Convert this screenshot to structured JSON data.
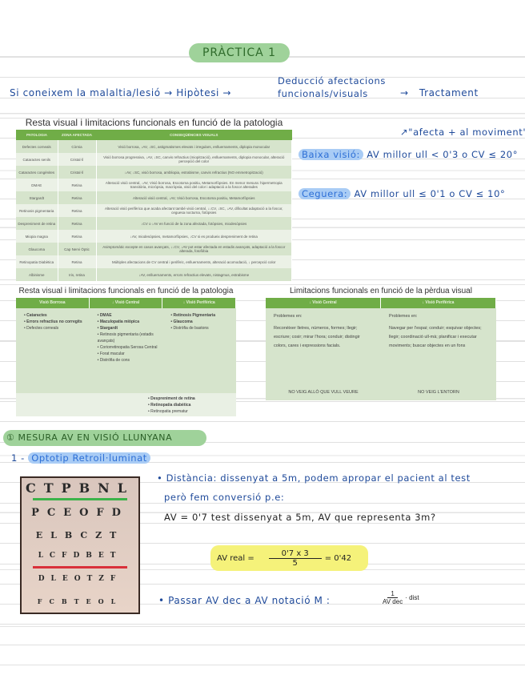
{
  "title": "PRÀCTICA 1",
  "flow": {
    "step1": "Si coneixem la malaltia/lesió",
    "arrow": "→",
    "step2": "Hipòtesi",
    "step3_line1": "Deducció afectacions",
    "step3_line2": "funcionals/visuals",
    "step4": "Tractament"
  },
  "table1": {
    "title": "Resta visual i limitacions funcionals en funció de la patologia",
    "headers": [
      "PATOLOGIA",
      "ZONA AFECTADA",
      "CONSEQÜÈNCIES VISUALS"
    ],
    "rows": [
      [
        "Defectes corneals",
        "Còrnia",
        "Visió borrosa, ↓AV, ↓SC, astigmatismes elevats i irregulars, enlluernaments, diplopia monocular"
      ],
      [
        "Cataractes senils",
        "Cristal·lí",
        "Visió borrosa progressiva, ↓AV, ↓SC, canvis refractius (miopització), enlluernaments, diplopia monocular, alteració percepció del color"
      ],
      [
        "Cataractes congènites",
        "Cristal·lí",
        "↓AV, ↓SC, visió borrosa, ambliopia, estrabisme, canvis refractius (NO emmetropització)"
      ],
      [
        "DMAE",
        "Retina",
        "Alteració visió central, ↓AV, Visió borrosa, Escotoma positiu, Metamorfòpsies. En menor mesura: hipermetropia transitòria, micròpsia, macròpsia, visió del color i adaptació a la foscor alterades"
      ],
      [
        "Stargardt",
        "Retina",
        "Alteració visió central, ↓AV, Visió borrosa, Escotoma positiu, Metamorfòpsies"
      ],
      [
        "Retinosis pigmentaria",
        "Retina",
        "Alteració visió perifèrica que acaba afectant també visió central, ↓↓CV, ↓SC, ↓AV, dificultat adaptació a la foscor, ceguesa nocturna, fotòpsies"
      ],
      [
        "Despreniment de retina",
        "Retina",
        "↓CV o ↓AV en funció de la zona afectada, fotòpsies, miodesòpsies"
      ],
      [
        "Miopia magna",
        "Retina",
        "↓AV, miodesòpsies, metamorfòpsies, ↓CV si es produeix despreniment de retina"
      ],
      [
        "Glaucoma",
        "Cap Nervi Òptic",
        "Asimptomàtic excepte en casos avançats, ↓↓CV, ↓AV pot estar afectada en estadis avançats, adaptació a la foscor alterada, fotofòbia"
      ],
      [
        "Retinopatia Diabètica",
        "Retina",
        "Múltiples afectacions de CV central i perifèric, enlluernaments, alteració acomodació, ↓ percepció color"
      ],
      [
        "Albinisme",
        "Iris, retina",
        "↓AV, enlluernaments, errors refractius elevats, nistagmus, estrabisme"
      ]
    ]
  },
  "notes_right": {
    "movement": "\"afecta + al moviment\"",
    "low_vision_label": "Baixa visió:",
    "low_vision_text": "AV millor ull < 0'3 o CV ≤ 20°",
    "blindness_label": "Ceguera:",
    "blindness_text": "AV millor ull ≤ 0'1 o CV ≤ 10°"
  },
  "table2": {
    "title": "Resta visual i limitacions funcionals en funció de la patologia",
    "headers": [
      "Visió Borrosa",
      "↓ Visió Central",
      "↓ Visió Perifèrica"
    ],
    "col1": [
      "Cataractes",
      "Errors refractius no corregits",
      "Defectes corneals"
    ],
    "col2": [
      "DMAE",
      "Maculopatia miòpica",
      "Stargardt",
      "Retinosis pigmentaria (estadis avançats)",
      "Coriorretinopatia Serosa Central",
      "Forat macular",
      "Distròfia de cons"
    ],
    "col3": [
      "Retinosis Pigmentaria",
      "Glaucoma",
      "Distròfia de bastons"
    ],
    "bottom": [
      "Despreniment de retina",
      "Retinopatia diabètica",
      "Retinopatia prematur"
    ]
  },
  "table3": {
    "title": "Limitacions funcionals en funció de la pèrdua visual",
    "headers": [
      "↓ Visió Central",
      "↓ Visió Perifèrica"
    ],
    "problems_label": "Problemes en:",
    "col1_text": "Reconèixer lletres, números, formes; llegir; escriure; cosir; mirar l'hora; conduir; distingir colors, cares i expressions facials.",
    "col2_text": "Navegar per l'espai; conduir; esquivar objectes; llegir; coordinació ull-mà; planificar i executar moviments; buscar objectes en un fons",
    "col1_footer": "NO VEIG ALLÒ QUE VULL VEURE",
    "col2_footer": "NO VEIG L'ENTORN"
  },
  "section": {
    "title": "① MESURA AV EN VISIÓ LLUNYANA",
    "sub_number": "1 -",
    "sub_title": "Optotip Retroil·luminat"
  },
  "eye_chart": {
    "rows": [
      "CTPBNL",
      "PCEOFD",
      "ELBCZT",
      "LCFDBET",
      "DLEOTZF",
      "FCBTEOL"
    ],
    "colors": {
      "green_line": "#3cb34a",
      "red_line": "#d9303a"
    }
  },
  "notes_bottom": {
    "distance_line1": "• Distància: dissenyat a 5m, podem apropar el pacient al test",
    "distance_line2": "però fem conversió p.e:",
    "question": "AV = 0'7 test dissenyat a 5m, AV que representa 3m?",
    "formula_label": "AV real =",
    "formula_num": "0'7 x 3",
    "formula_den": "5",
    "formula_result": "= 0'42",
    "metric_text": "• Passar AV dec a AV notació M :",
    "metric_num": "1",
    "metric_den": "AV dec",
    "metric_tail": "· dist"
  },
  "colors": {
    "ink": "#1f4a9a",
    "green_highlight": "#9fd29a",
    "blue_highlight": "#a9ccf5",
    "yellow_highlight": "#f5f27a",
    "table_green": "#70ad47"
  }
}
